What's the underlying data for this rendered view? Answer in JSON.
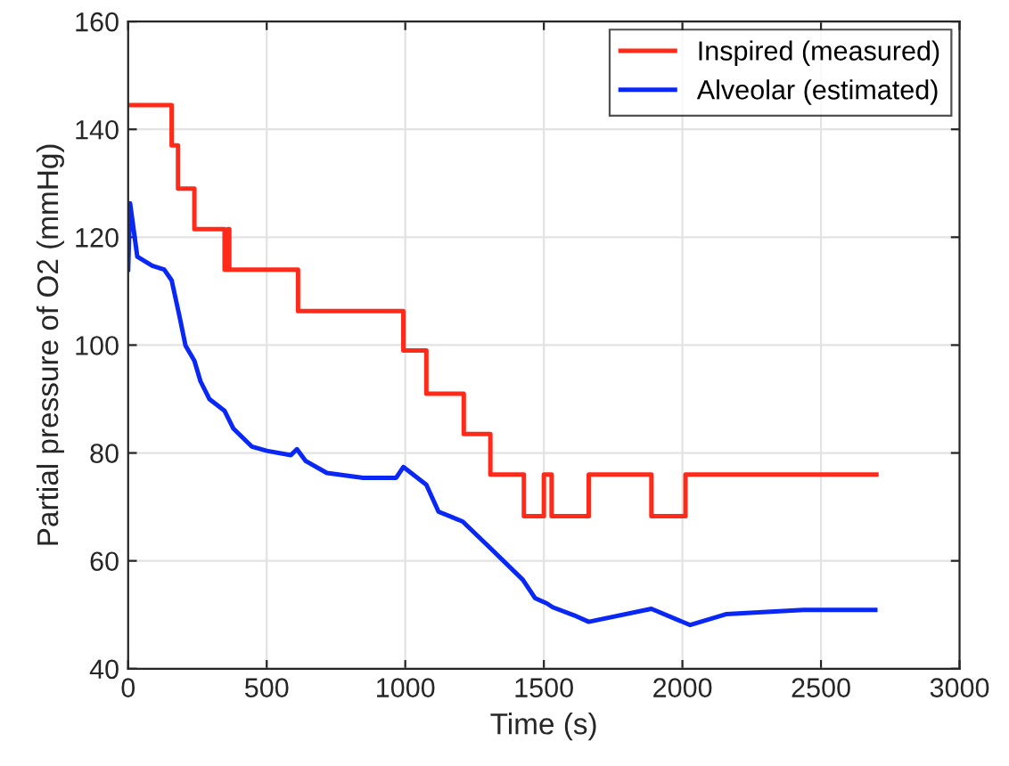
{
  "chart_data": {
    "type": "line",
    "xlabel": "Time (s)",
    "ylabel": "Partial pressure of O2 (mmHg)",
    "xlim": [
      0,
      3000
    ],
    "ylim": [
      40,
      160
    ],
    "xticks": [
      0,
      500,
      1000,
      1500,
      2000,
      2500,
      3000
    ],
    "yticks": [
      40,
      60,
      80,
      100,
      120,
      140,
      160
    ],
    "grid": true,
    "legend": "top right",
    "series": [
      {
        "name": "Inspired (measured)",
        "color": "#ff2a1a",
        "type": "step",
        "x": [
          0,
          157,
          180,
          239,
          348,
          360,
          365,
          374,
          613,
          993,
          1076,
          1211,
          1307,
          1428,
          1500,
          1528,
          1662,
          1888,
          2011,
          2700
        ],
        "values": [
          144.5,
          137,
          129,
          121.5,
          114,
          121.5,
          114,
          114,
          106.3,
          99,
          91,
          83.5,
          76,
          68.3,
          76,
          68.3,
          76,
          68.3,
          76,
          76
        ]
      },
      {
        "name": "Alveolar (estimated)",
        "color": "#0a28f5",
        "x": [
          0,
          7,
          33,
          87,
          130,
          157,
          185,
          207,
          239,
          261,
          293,
          348,
          380,
          446,
          500,
          587,
          609,
          641,
          717,
          848,
          967,
          993,
          1076,
          1120,
          1207,
          1304,
          1424,
          1468,
          1511,
          1532,
          1609,
          1662,
          1888,
          2028,
          2157,
          2437,
          2696
        ],
        "values": [
          114,
          126.3,
          116.4,
          114.7,
          114,
          112,
          105.4,
          99.9,
          97.1,
          93.3,
          90,
          87.8,
          84.5,
          81.2,
          80.4,
          79.6,
          80.7,
          78.5,
          76.3,
          75.4,
          75.4,
          77.4,
          74.1,
          69.1,
          67.3,
          62.5,
          56.5,
          53.1,
          52.1,
          51.4,
          49.9,
          48.7,
          51.1,
          48.1,
          50.1,
          50.9,
          50.9
        ]
      }
    ]
  }
}
